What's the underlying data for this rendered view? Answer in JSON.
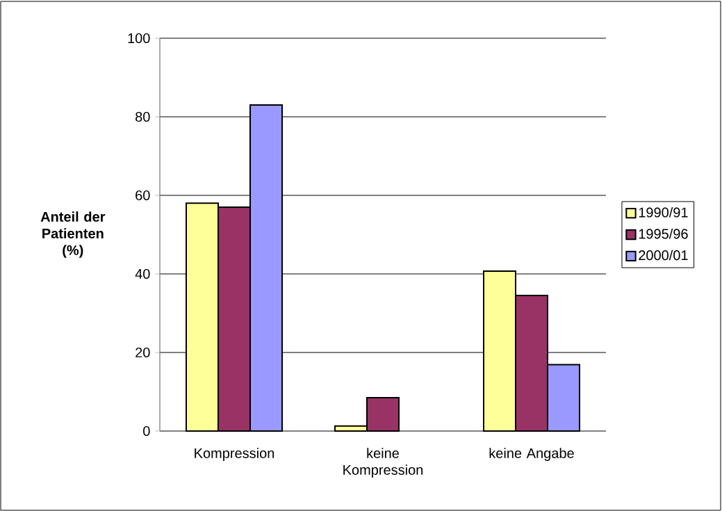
{
  "chart_data": {
    "type": "bar",
    "ylabel": "Anteil der Patienten (%)",
    "categories": [
      "Kompression",
      "keine Kompression",
      "keine Angabe"
    ],
    "series": [
      {
        "name": "1990/91",
        "color": "#ffff99",
        "values": [
          58,
          1.3,
          40.7
        ]
      },
      {
        "name": "1995/96",
        "color": "#993366",
        "values": [
          57,
          8.5,
          34.5
        ]
      },
      {
        "name": "2000/01",
        "color": "#9999ff",
        "values": [
          83,
          null,
          16.9
        ]
      }
    ],
    "ylim": [
      0,
      100
    ],
    "yticks": [
      0,
      20,
      40,
      60,
      80,
      100
    ],
    "grid": "y",
    "legend": "right"
  }
}
